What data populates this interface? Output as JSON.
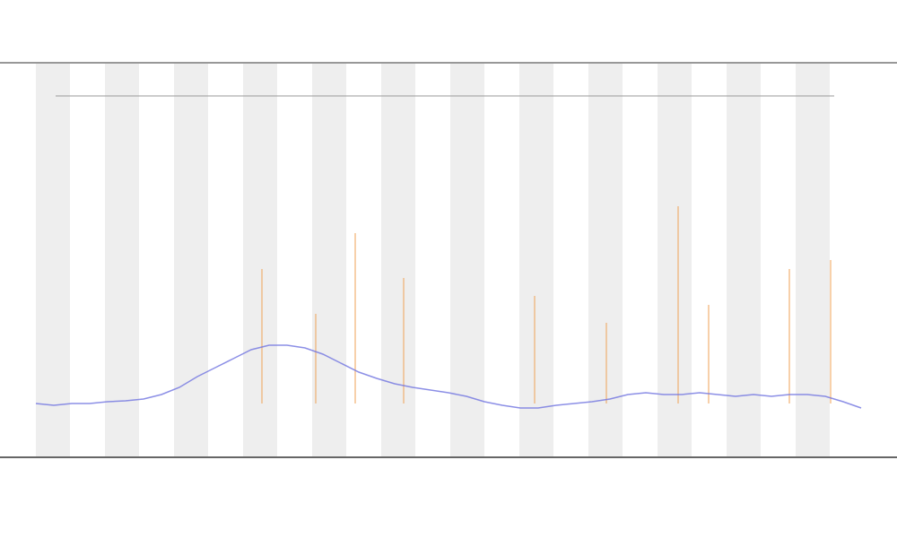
{
  "chart_data": {
    "type": "line",
    "color": "#6f73e0",
    "values": [
      60,
      58,
      60,
      60,
      62,
      63,
      65,
      70,
      78,
      90,
      100,
      110,
      120,
      125,
      125,
      122,
      115,
      105,
      95,
      88,
      82,
      78,
      75,
      72,
      68,
      62,
      58,
      55,
      55,
      58,
      60,
      62,
      65,
      70,
      72,
      70,
      70,
      72,
      70,
      68,
      70,
      68,
      70,
      70,
      68,
      62,
      55
    ],
    "xlim": [
      0,
      46
    ],
    "ylim": [
      0,
      440
    ],
    "spikes": {
      "color": "#f0a050",
      "x": [
        12.6,
        15.6,
        17.8,
        20.5,
        27.8,
        31.8,
        35.8,
        37.5,
        42,
        44.3
      ],
      "values": [
        210,
        160,
        250,
        200,
        180,
        150,
        280,
        170,
        210,
        220
      ]
    }
  }
}
